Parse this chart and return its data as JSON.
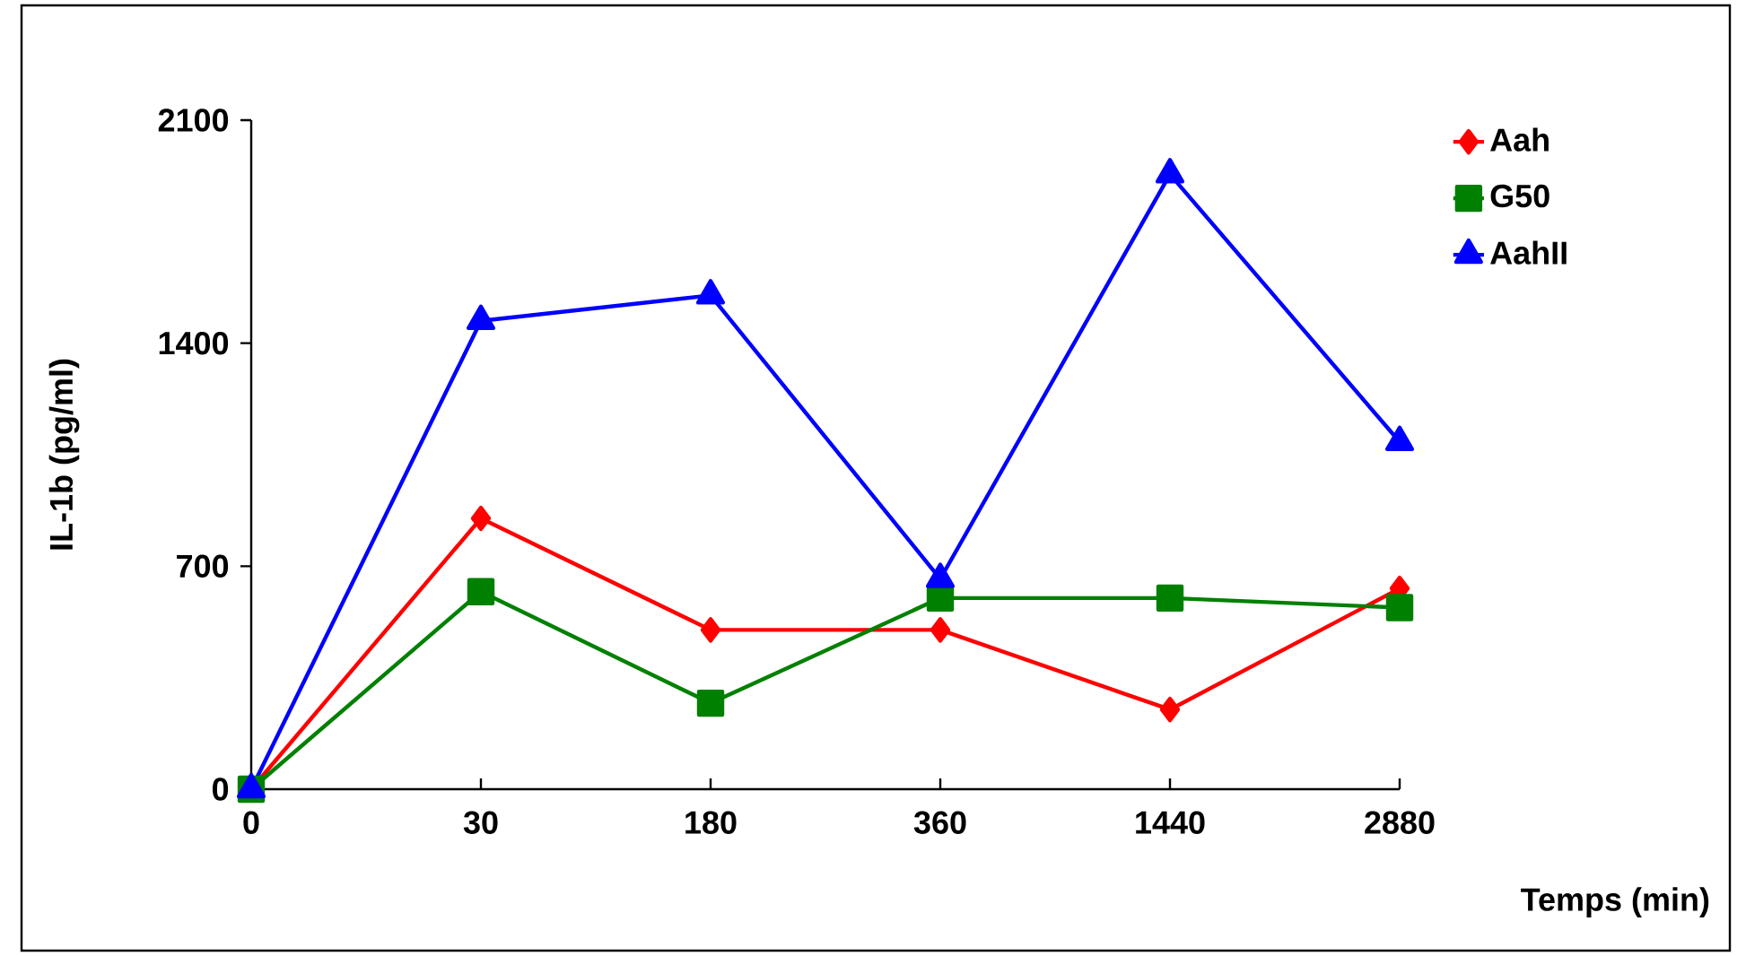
{
  "chart_data": {
    "type": "line",
    "xlabel": "Temps (min)",
    "ylabel": "IL-1b (pg/ml)",
    "categories": [
      "0",
      "30",
      "180",
      "360",
      "1440",
      "2880"
    ],
    "ylim": [
      0,
      2100
    ],
    "yticks": [
      0,
      700,
      1400,
      2100
    ],
    "grid": false,
    "legend": "top right",
    "series": [
      {
        "name": "Aah",
        "color": "#ff0000",
        "marker": "diamond",
        "values": [
          0,
          850,
          500,
          500,
          250,
          630
        ]
      },
      {
        "name": "G50",
        "color": "#008000",
        "marker": "square",
        "values": [
          0,
          620,
          270,
          600,
          600,
          570
        ]
      },
      {
        "name": "AahII",
        "color": "#0000ff",
        "marker": "triangle",
        "values": [
          0,
          1470,
          1550,
          660,
          1930,
          1090
        ]
      }
    ]
  }
}
